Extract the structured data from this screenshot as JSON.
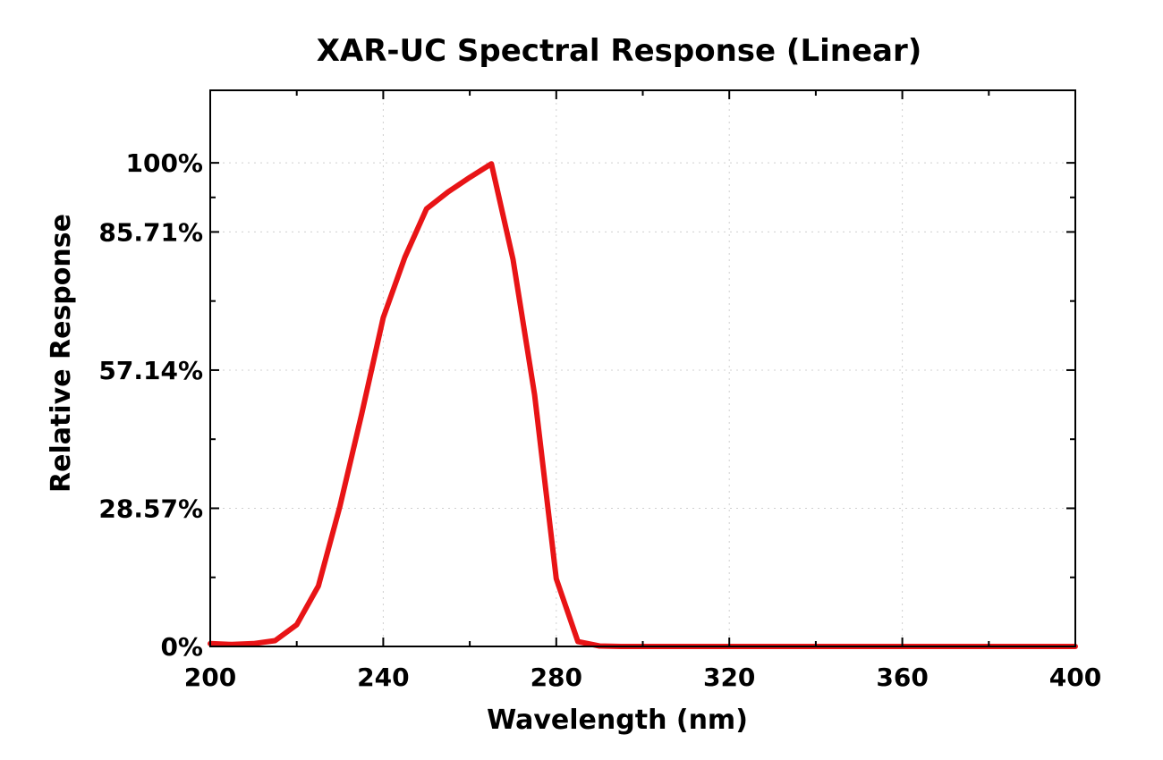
{
  "chart_data": {
    "type": "line",
    "title": "XAR-UC Spectral Response (Linear)",
    "xlabel": "Wavelength (nm)",
    "ylabel": "Relative Response",
    "xlim": [
      200,
      400
    ],
    "ylim": [
      0,
      115
    ],
    "x_ticks": [
      200,
      240,
      280,
      320,
      360,
      400
    ],
    "x_tick_labels": [
      "200",
      "240",
      "280",
      "320",
      "360",
      "400"
    ],
    "y_ticks": [
      0,
      28.57,
      57.14,
      85.71,
      100
    ],
    "y_tick_labels": [
      "0%",
      "28.57%",
      "57.14%",
      "85.71%",
      "100%"
    ],
    "grid": true,
    "series": [
      {
        "color": "#e81416",
        "x": [
          200,
          205,
          210,
          215,
          220,
          225,
          230,
          235,
          240,
          245,
          250,
          255,
          260,
          265,
          270,
          275,
          280,
          285,
          290,
          295,
          300,
          320,
          340,
          360,
          380,
          400
        ],
        "y": [
          0.6,
          0.4,
          0.6,
          1.2,
          4.5,
          12.5,
          29,
          48,
          68,
          80.5,
          90.5,
          94,
          97,
          99.8,
          80,
          52,
          14,
          1,
          0.1,
          0,
          0,
          0,
          0,
          0,
          0,
          0
        ]
      }
    ]
  }
}
